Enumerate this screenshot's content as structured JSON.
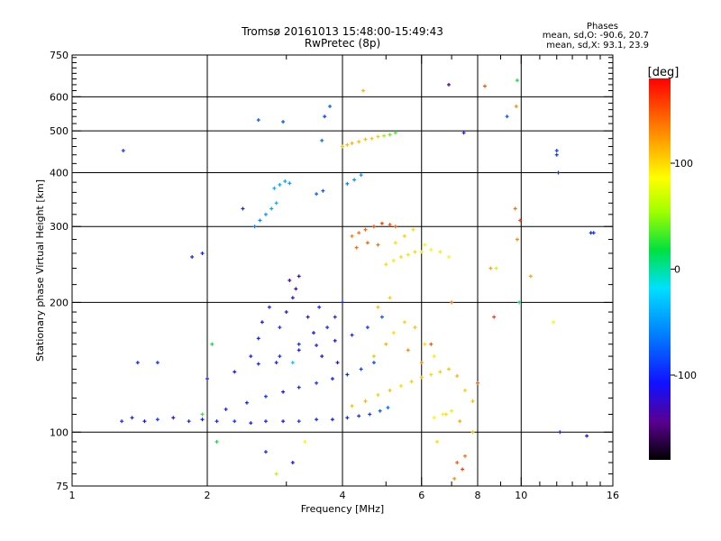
{
  "chart_data": {
    "type": "scatter",
    "title": "Tromsø 20161013 15:48:00-15:49:43",
    "subtitle": "RwPretec (8p)",
    "xlabel": "Frequency [MHz]",
    "ylabel": "Stationary phase Virtual Height [km]",
    "x_scale": "log",
    "y_scale": "log",
    "xlim": [
      1,
      16
    ],
    "ylim": [
      75,
      750
    ],
    "x_ticks": [
      1,
      2,
      4,
      6,
      8,
      10,
      16
    ],
    "y_ticks": [
      75,
      100,
      200,
      300,
      400,
      500,
      600,
      750
    ],
    "grid": true,
    "phases": {
      "title": "Phases",
      "line_o": "mean, sd,O: -90.6, 20.7",
      "line_x": "mean, sd,X:  93.1, 23.9"
    },
    "colorbar": {
      "label": "[deg]",
      "min": -180,
      "max": 180,
      "ticks": [
        -100,
        0,
        100
      ]
    },
    "series": [
      {
        "values": [
          [
            1.29,
            106,
            -95
          ],
          [
            1.36,
            108,
            -100
          ],
          [
            1.45,
            106,
            -110
          ],
          [
            1.55,
            107,
            -95
          ],
          [
            1.68,
            108,
            -105
          ],
          [
            1.82,
            106,
            -100
          ],
          [
            1.95,
            107,
            -110
          ],
          [
            2.1,
            106,
            -100
          ],
          [
            2.3,
            106,
            -95
          ],
          [
            2.5,
            105,
            -105
          ],
          [
            2.7,
            106,
            -100
          ],
          [
            2.95,
            106,
            -110
          ],
          [
            3.2,
            106,
            -95
          ],
          [
            3.5,
            107,
            -100
          ],
          [
            3.8,
            107,
            -105
          ],
          [
            4.1,
            108,
            -100
          ],
          [
            4.35,
            109,
            -95
          ],
          [
            4.6,
            110,
            -90
          ],
          [
            4.85,
            112,
            -80
          ],
          [
            5.05,
            114,
            -70
          ]
        ]
      },
      {
        "values": [
          [
            2.2,
            113,
            -100
          ],
          [
            2.45,
            117,
            -105
          ],
          [
            2.7,
            121,
            -95
          ],
          [
            2.95,
            124,
            -110
          ],
          [
            3.2,
            127,
            -100
          ],
          [
            3.5,
            130,
            -95
          ],
          [
            3.8,
            133,
            -105
          ],
          [
            4.1,
            136,
            -100
          ],
          [
            4.4,
            140,
            -90
          ],
          [
            4.7,
            145,
            -85
          ]
        ]
      },
      {
        "values": [
          [
            2.0,
            133,
            -100
          ],
          [
            2.3,
            138,
            -110
          ],
          [
            2.6,
            144,
            -100
          ],
          [
            2.9,
            150,
            -95
          ],
          [
            3.2,
            155,
            -105
          ],
          [
            3.5,
            159,
            -100
          ],
          [
            3.85,
            163,
            -110
          ],
          [
            4.2,
            168,
            -95
          ],
          [
            4.55,
            175,
            -90
          ],
          [
            4.9,
            185,
            -80
          ]
        ]
      },
      {
        "values": [
          [
            2.5,
            150,
            -100
          ],
          [
            2.6,
            165,
            -105
          ],
          [
            2.65,
            180,
            -110
          ],
          [
            2.75,
            195,
            -100
          ],
          [
            2.9,
            175,
            -95
          ],
          [
            3.0,
            190,
            -120
          ],
          [
            3.1,
            205,
            -125
          ],
          [
            3.15,
            215,
            -130
          ],
          [
            3.2,
            160,
            -100
          ],
          [
            3.35,
            185,
            -105
          ],
          [
            3.45,
            170,
            -110
          ],
          [
            3.55,
            195,
            -100
          ],
          [
            3.7,
            175,
            -95
          ],
          [
            3.85,
            185,
            -100
          ],
          [
            4.0,
            200,
            -105
          ],
          [
            3.05,
            225,
            -135
          ],
          [
            3.2,
            230,
            -130
          ],
          [
            2.85,
            145,
            -100
          ],
          [
            3.6,
            150,
            -120
          ],
          [
            3.9,
            145,
            -125
          ]
        ]
      },
      {
        "values": [
          [
            2.55,
            300,
            -60
          ],
          [
            2.62,
            310,
            -55
          ],
          [
            2.7,
            320,
            -50
          ],
          [
            2.78,
            330,
            -45
          ],
          [
            2.85,
            340,
            -40
          ],
          [
            2.82,
            368,
            -40
          ],
          [
            2.9,
            375,
            -42
          ],
          [
            2.98,
            382,
            -45
          ],
          [
            3.05,
            378,
            -50
          ],
          [
            3.5,
            357,
            -75
          ],
          [
            3.62,
            363,
            -80
          ],
          [
            4.1,
            377,
            -60
          ],
          [
            4.25,
            385,
            -55
          ],
          [
            4.4,
            395,
            -50
          ],
          [
            4.45,
            620,
            115
          ]
        ]
      },
      {
        "values": [
          [
            4.0,
            460,
            110
          ],
          [
            4.1,
            464,
            112
          ],
          [
            4.2,
            468,
            115
          ],
          [
            4.35,
            472,
            112
          ],
          [
            4.5,
            478,
            110
          ],
          [
            4.65,
            480,
            108
          ],
          [
            4.8,
            485,
            105
          ],
          [
            4.95,
            487,
            50
          ],
          [
            5.1,
            490,
            40
          ],
          [
            5.25,
            495,
            30
          ]
        ]
      },
      {
        "values": [
          [
            4.2,
            285,
            135
          ],
          [
            4.35,
            290,
            140
          ],
          [
            4.5,
            295,
            145
          ],
          [
            4.7,
            300,
            155
          ],
          [
            4.9,
            305,
            160
          ],
          [
            5.1,
            303,
            150
          ],
          [
            5.25,
            300,
            145
          ],
          [
            4.3,
            268,
            140
          ],
          [
            4.55,
            275,
            145
          ],
          [
            4.8,
            272,
            140
          ]
        ]
      },
      {
        "values": [
          [
            5.0,
            245,
            100
          ],
          [
            5.2,
            250,
            95
          ],
          [
            5.4,
            255,
            100
          ],
          [
            5.6,
            258,
            98
          ],
          [
            5.8,
            262,
            100
          ],
          [
            6.0,
            262,
            95
          ],
          [
            6.3,
            265,
            90
          ],
          [
            6.6,
            262,
            95
          ],
          [
            5.25,
            275,
            100
          ],
          [
            5.5,
            285,
            105
          ],
          [
            5.75,
            295,
            100
          ],
          [
            6.1,
            272,
            90
          ],
          [
            6.9,
            255,
            80
          ]
        ]
      },
      {
        "values": [
          [
            4.2,
            115,
            110
          ],
          [
            4.5,
            118,
            115
          ],
          [
            4.8,
            122,
            105
          ],
          [
            5.1,
            125,
            110
          ],
          [
            5.4,
            128,
            100
          ],
          [
            5.7,
            131,
            105
          ],
          [
            6.0,
            134,
            110
          ],
          [
            6.3,
            136,
            100
          ],
          [
            6.6,
            138,
            105
          ],
          [
            6.9,
            140,
            110
          ],
          [
            7.2,
            135,
            115
          ],
          [
            7.5,
            125,
            105
          ],
          [
            7.8,
            118,
            110
          ],
          [
            4.7,
            150,
            110
          ],
          [
            5.0,
            160,
            115
          ],
          [
            5.2,
            170,
            100
          ],
          [
            5.5,
            180,
            105
          ],
          [
            5.8,
            175,
            110
          ],
          [
            6.1,
            160,
            100
          ],
          [
            6.4,
            150,
            95
          ],
          [
            4.8,
            195,
            110
          ],
          [
            5.1,
            205,
            105
          ],
          [
            6.0,
            145,
            130
          ],
          [
            5.6,
            155,
            130
          ],
          [
            6.8,
            110,
            100
          ]
        ]
      },
      {
        "values": [
          [
            6.4,
            108,
            80
          ],
          [
            6.7,
            110,
            90
          ],
          [
            7.0,
            112,
            95
          ],
          [
            7.3,
            106,
            120
          ],
          [
            7.5,
            88,
            140
          ],
          [
            7.2,
            85,
            150
          ],
          [
            6.5,
            95,
            100
          ],
          [
            7.8,
            100,
            110
          ],
          [
            7.1,
            78,
            130
          ],
          [
            7.4,
            82,
            160
          ]
        ]
      },
      {
        "values": [
          [
            1.3,
            450,
            -90
          ],
          [
            1.4,
            145,
            -100
          ],
          [
            1.55,
            145,
            -95
          ],
          [
            1.85,
            255,
            -100
          ],
          [
            1.95,
            260,
            -105
          ],
          [
            2.6,
            530,
            -80
          ],
          [
            2.95,
            525,
            -80
          ],
          [
            2.4,
            330,
            -100
          ],
          [
            2.1,
            95,
            20
          ],
          [
            1.95,
            110,
            30
          ],
          [
            3.1,
            85,
            -110
          ],
          [
            2.7,
            90,
            -100
          ],
          [
            2.85,
            80,
            60
          ],
          [
            3.3,
            95,
            90
          ],
          [
            3.1,
            145,
            -30
          ],
          [
            2.05,
            160,
            20
          ],
          [
            3.6,
            475,
            -70
          ],
          [
            3.65,
            540,
            -90
          ],
          [
            3.75,
            570,
            -75
          ]
        ]
      },
      {
        "values": [
          [
            6.9,
            640,
            -140
          ],
          [
            7.45,
            495,
            -100
          ],
          [
            8.3,
            635,
            150
          ],
          [
            9.3,
            540,
            -80
          ],
          [
            9.75,
            570,
            130
          ],
          [
            9.8,
            655,
            20
          ],
          [
            9.95,
            310,
            160
          ],
          [
            9.7,
            330,
            140
          ],
          [
            9.8,
            280,
            130
          ],
          [
            9.9,
            200,
            10
          ],
          [
            8.7,
            185,
            160
          ],
          [
            8.55,
            240,
            120
          ],
          [
            8.8,
            240,
            70
          ],
          [
            12.0,
            450,
            -90
          ],
          [
            12.0,
            440,
            -95
          ],
          [
            12.1,
            400,
            -100
          ],
          [
            14.3,
            290,
            -100
          ],
          [
            14.5,
            290,
            -95
          ],
          [
            11.8,
            180,
            80
          ],
          [
            10.5,
            230,
            120
          ],
          [
            12.2,
            100,
            -100
          ],
          [
            14.0,
            98,
            -110
          ],
          [
            8.0,
            130,
            150
          ],
          [
            7.0,
            200,
            140
          ],
          [
            6.3,
            160,
            150
          ]
        ]
      }
    ]
  }
}
